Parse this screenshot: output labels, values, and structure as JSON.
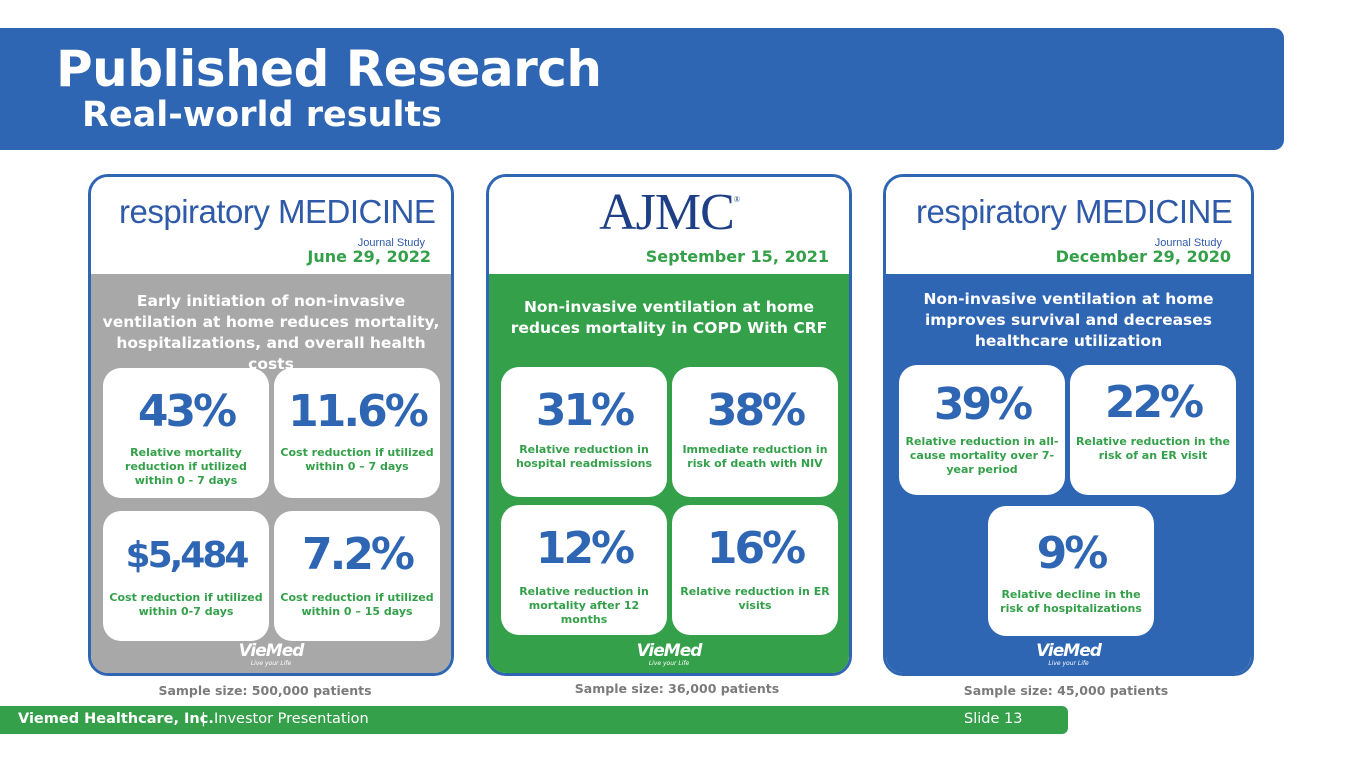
{
  "header": {
    "title": "Published Research",
    "subtitle": "Real-world results"
  },
  "cards": [
    {
      "journal_main": "respiratory MEDICINE",
      "journal_sub": "Journal Study",
      "date": "June 29, 2022",
      "headline": "Early initiation of non-invasive ventilation at home reduces mortality, hospitalizations, and overall health costs",
      "stats": [
        {
          "value": "43%",
          "label": "Relative mortality reduction if utilized within 0 - 7 days"
        },
        {
          "value": "11.6%",
          "label": "Cost reduction if utilized within 0 – 7 days"
        },
        {
          "value": "$5,484",
          "label": "Cost reduction if utilized within 0-7 days"
        },
        {
          "value": "7.2%",
          "label": "Cost reduction if utilized within 0 – 15 days"
        }
      ],
      "logo": "VieMed",
      "logo_tagline": "Live your Life",
      "sample": "Sample size: 500,000 patients"
    },
    {
      "journal_main": "AJMC",
      "date": "September 15, 2021",
      "headline": "Non-invasive ventilation at home reduces mortality in COPD With CRF",
      "stats": [
        {
          "value": "31%",
          "label": "Relative reduction in hospital readmissions"
        },
        {
          "value": "38%",
          "label": "Immediate reduction in risk of death with NIV"
        },
        {
          "value": "12%",
          "label": "Relative reduction in mortality after 12 months"
        },
        {
          "value": "16%",
          "label": "Relative reduction in ER visits"
        }
      ],
      "logo": "VieMed",
      "logo_tagline": "Live your Life",
      "sample": "Sample size: 36,000 patients"
    },
    {
      "journal_main": "respiratory MEDICINE",
      "journal_sub": "Journal Study",
      "date": "December 29, 2020",
      "headline": "Non-invasive ventilation at home improves survival and decreases healthcare utilization",
      "stats": [
        {
          "value": "39%",
          "label": "Relative reduction in all-cause mortality over 7-year period"
        },
        {
          "value": "22%",
          "label": "Relative reduction in the risk of an ER visit"
        },
        {
          "value": "9%",
          "label": "Relative decline in the risk of hospitalizations"
        }
      ],
      "logo": "VieMed",
      "logo_tagline": "Live your Life",
      "sample": "Sample size: 45,000 patients"
    }
  ],
  "footer": {
    "company": "Viemed Healthcare, Inc.",
    "separator": "|",
    "presentation": "Investor Presentation",
    "slide": "Slide 13"
  },
  "colors": {
    "blue": "#2f66b3",
    "green": "#34a04a",
    "gray": "#a8a8a8"
  }
}
